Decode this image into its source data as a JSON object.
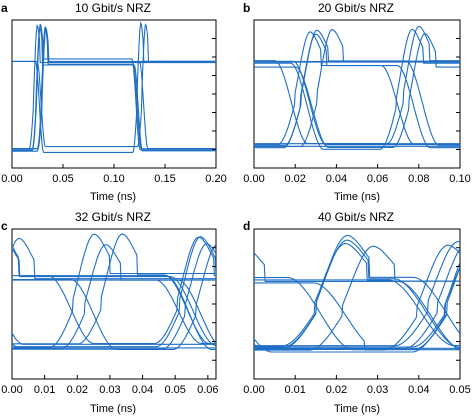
{
  "figure": {
    "trace_color": "#1f6fc5"
  },
  "chart_data": [
    {
      "type": "line",
      "panel_label": "a",
      "title": "10 Gbit/s NRZ",
      "xlabel": "Time (ns)",
      "ylabel": "",
      "xlim": [
        0.0,
        0.2
      ],
      "xticks": [
        0.0,
        0.05,
        0.1,
        0.15,
        0.2
      ],
      "xtick_labels": [
        "0.00",
        "0.05",
        "0.10",
        "0.15",
        "0.20"
      ],
      "eye": {
        "bit_period_ns": 0.1,
        "first_crossing_ns": 0.025,
        "crossing_width_ns": 0.004,
        "level_high": 0.72,
        "level_low": 0.12,
        "overshoot": 0.24,
        "jitter_ns": 0.006,
        "traces": 8
      }
    },
    {
      "type": "line",
      "panel_label": "b",
      "title": "20 Gbit/s NRZ",
      "xlabel": "Time (ns)",
      "ylabel": "",
      "xlim": [
        0.0,
        0.1
      ],
      "xticks": [
        0.0,
        0.02,
        0.04,
        0.06,
        0.08,
        0.1
      ],
      "xtick_labels": [
        "0.00",
        "0.02",
        "0.04",
        "0.06",
        "0.08",
        "0.10"
      ],
      "eye": {
        "bit_period_ns": 0.05,
        "first_crossing_ns": 0.025,
        "crossing_width_ns": 0.008,
        "level_high": 0.7,
        "level_low": 0.15,
        "overshoot": 0.22,
        "jitter_ns": 0.007,
        "traces": 12
      }
    },
    {
      "type": "line",
      "panel_label": "c",
      "title": "32 Gbit/s NRZ",
      "xlabel": "Time (ns)",
      "ylabel": "",
      "xlim": [
        0.0,
        0.0625
      ],
      "xticks": [
        0.0,
        0.01,
        0.02,
        0.03,
        0.04,
        0.05,
        0.06
      ],
      "xtick_labels": [
        "0.00",
        "0.01",
        "0.02",
        "0.03",
        "0.04",
        "0.05",
        "0.06"
      ],
      "eye": {
        "bit_period_ns": 0.03125,
        "first_crossing_ns": 0.023,
        "crossing_width_ns": 0.007,
        "level_high": 0.68,
        "level_low": 0.22,
        "overshoot": 0.25,
        "jitter_ns": 0.005,
        "traces": 14
      }
    },
    {
      "type": "line",
      "panel_label": "d",
      "title": "40 Gbit/s NRZ",
      "xlabel": "Time (ns)",
      "ylabel": "",
      "xlim": [
        0.0,
        0.05
      ],
      "xticks": [
        0.0,
        0.01,
        0.02,
        0.03,
        0.04,
        0.05
      ],
      "xtick_labels": [
        "0.00",
        "0.01",
        "0.02",
        "0.03",
        "0.04",
        "0.05"
      ],
      "eye": {
        "bit_period_ns": 0.025,
        "first_crossing_ns": 0.018,
        "crossing_width_ns": 0.008,
        "level_high": 0.66,
        "level_low": 0.2,
        "overshoot": 0.26,
        "jitter_ns": 0.005,
        "traces": 14
      }
    }
  ]
}
